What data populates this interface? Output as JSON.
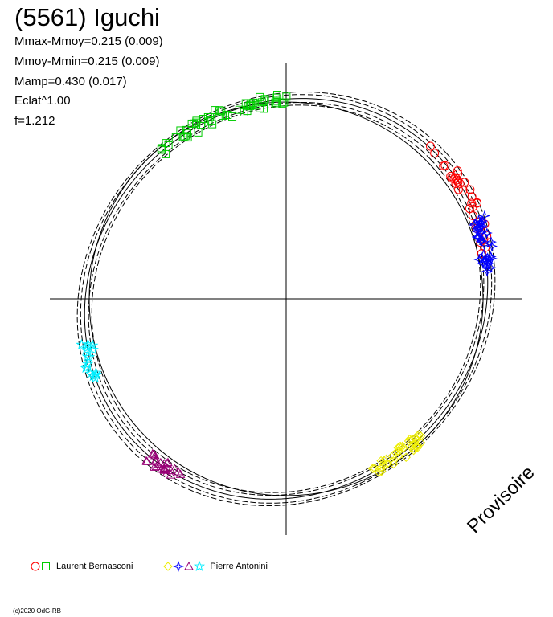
{
  "chart_data": {
    "type": "scatter",
    "title": "(5561) Iguchi",
    "stats": [
      "Mmax-Mmoy=0.215 (0.009)",
      "Mmoy-Mmin=0.215 (0.009)",
      "Mamp=0.430 (0.017)",
      "Eclat^1.00",
      "f=1.212"
    ],
    "axes": {
      "x_range": [
        -1.2,
        1.2
      ],
      "y_range": [
        -1.2,
        1.2
      ],
      "reference_circle_radius": 1.0
    },
    "fit_curves": [
      {
        "style": "solid",
        "a": 1.06,
        "b": 0.98,
        "rotation_deg": 43
      },
      {
        "style": "dashed",
        "a": 1.08,
        "b": 1.0,
        "rotation_deg": 43
      },
      {
        "style": "dashed",
        "a": 1.04,
        "b": 0.96,
        "rotation_deg": 43
      },
      {
        "style": "dashed",
        "a": 1.1,
        "b": 1.01,
        "rotation_deg": 42
      },
      {
        "style": "dashed",
        "a": 1.02,
        "b": 0.95,
        "rotation_deg": 44
      }
    ],
    "series": [
      {
        "observer": "Laurent Bernasconi",
        "marker": "circle",
        "color": "#ff0000",
        "phase_range": [
          -35,
          5
        ],
        "count": 36
      },
      {
        "observer": "Laurent Bernasconi",
        "marker": "square",
        "color": "#00cc00",
        "phase_range": [
          48,
          88
        ],
        "count": 60
      },
      {
        "observer": "Pierre Antonini",
        "marker": "diamond",
        "color": "#eeee00",
        "phase_range": [
          -105,
          -88
        ],
        "count": 40
      },
      {
        "observer": "Pierre Antonini",
        "marker": "star4",
        "color": "#0000ff",
        "phase_range": [
          -38,
          -22
        ],
        "count": 40
      },
      {
        "observer": "Pierre Antonini",
        "marker": "triangle",
        "color": "#990077",
        "phase_range": [
          -173,
          -162
        ],
        "count": 26
      },
      {
        "observer": "Pierre Antonini",
        "marker": "star",
        "color": "#00eeff",
        "phase_range": [
          147,
          158
        ],
        "count": 16
      }
    ]
  },
  "legend": [
    {
      "label": "Laurent Bernasconi",
      "markers": [
        {
          "marker": "circle",
          "color": "#ff0000"
        },
        {
          "marker": "square",
          "color": "#00cc00"
        }
      ]
    },
    {
      "label": "Pierre Antonini",
      "markers": [
        {
          "marker": "diamond",
          "color": "#eeee00"
        },
        {
          "marker": "star4",
          "color": "#0000ff"
        },
        {
          "marker": "triangle",
          "color": "#990077"
        },
        {
          "marker": "star",
          "color": "#00eeff"
        }
      ]
    }
  ],
  "watermark": "Provisoire",
  "copyright": "(c)2020 OdG-RB"
}
